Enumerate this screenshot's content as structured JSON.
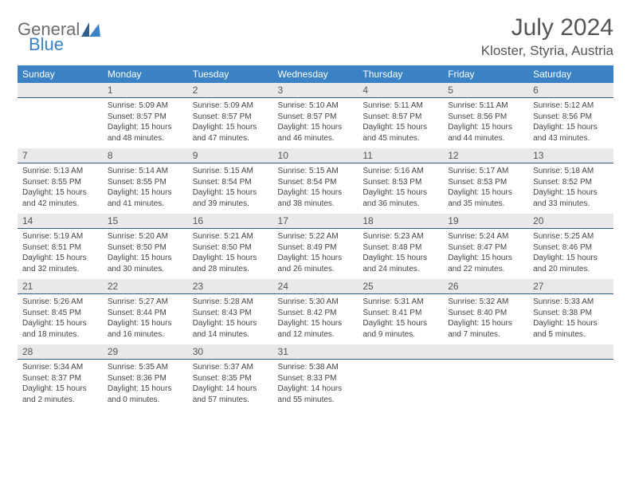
{
  "logo": {
    "general": "General",
    "blue": "Blue"
  },
  "title": "July 2024",
  "location": "Kloster, Styria, Austria",
  "colors": {
    "header_bg": "#3a82c4",
    "header_text": "#ffffff",
    "daynum_bg": "#e9e9e9",
    "daynum_border": "#2d5f8f",
    "body_text": "#444444",
    "page_bg": "#ffffff",
    "logo_general": "#6d6d6d",
    "logo_blue": "#3a82c4",
    "title_color": "#555555"
  },
  "fonts": {
    "title_size_pt": 22,
    "location_size_pt": 13,
    "dayhdr_size_pt": 9,
    "body_size_pt": 7.5
  },
  "day_headers": [
    "Sunday",
    "Monday",
    "Tuesday",
    "Wednesday",
    "Thursday",
    "Friday",
    "Saturday"
  ],
  "weeks": [
    [
      {
        "n": "",
        "sr": "",
        "ss": "",
        "dl": ""
      },
      {
        "n": "1",
        "sr": "Sunrise: 5:09 AM",
        "ss": "Sunset: 8:57 PM",
        "dl": "Daylight: 15 hours and 48 minutes."
      },
      {
        "n": "2",
        "sr": "Sunrise: 5:09 AM",
        "ss": "Sunset: 8:57 PM",
        "dl": "Daylight: 15 hours and 47 minutes."
      },
      {
        "n": "3",
        "sr": "Sunrise: 5:10 AM",
        "ss": "Sunset: 8:57 PM",
        "dl": "Daylight: 15 hours and 46 minutes."
      },
      {
        "n": "4",
        "sr": "Sunrise: 5:11 AM",
        "ss": "Sunset: 8:57 PM",
        "dl": "Daylight: 15 hours and 45 minutes."
      },
      {
        "n": "5",
        "sr": "Sunrise: 5:11 AM",
        "ss": "Sunset: 8:56 PM",
        "dl": "Daylight: 15 hours and 44 minutes."
      },
      {
        "n": "6",
        "sr": "Sunrise: 5:12 AM",
        "ss": "Sunset: 8:56 PM",
        "dl": "Daylight: 15 hours and 43 minutes."
      }
    ],
    [
      {
        "n": "7",
        "sr": "Sunrise: 5:13 AM",
        "ss": "Sunset: 8:55 PM",
        "dl": "Daylight: 15 hours and 42 minutes."
      },
      {
        "n": "8",
        "sr": "Sunrise: 5:14 AM",
        "ss": "Sunset: 8:55 PM",
        "dl": "Daylight: 15 hours and 41 minutes."
      },
      {
        "n": "9",
        "sr": "Sunrise: 5:15 AM",
        "ss": "Sunset: 8:54 PM",
        "dl": "Daylight: 15 hours and 39 minutes."
      },
      {
        "n": "10",
        "sr": "Sunrise: 5:15 AM",
        "ss": "Sunset: 8:54 PM",
        "dl": "Daylight: 15 hours and 38 minutes."
      },
      {
        "n": "11",
        "sr": "Sunrise: 5:16 AM",
        "ss": "Sunset: 8:53 PM",
        "dl": "Daylight: 15 hours and 36 minutes."
      },
      {
        "n": "12",
        "sr": "Sunrise: 5:17 AM",
        "ss": "Sunset: 8:53 PM",
        "dl": "Daylight: 15 hours and 35 minutes."
      },
      {
        "n": "13",
        "sr": "Sunrise: 5:18 AM",
        "ss": "Sunset: 8:52 PM",
        "dl": "Daylight: 15 hours and 33 minutes."
      }
    ],
    [
      {
        "n": "14",
        "sr": "Sunrise: 5:19 AM",
        "ss": "Sunset: 8:51 PM",
        "dl": "Daylight: 15 hours and 32 minutes."
      },
      {
        "n": "15",
        "sr": "Sunrise: 5:20 AM",
        "ss": "Sunset: 8:50 PM",
        "dl": "Daylight: 15 hours and 30 minutes."
      },
      {
        "n": "16",
        "sr": "Sunrise: 5:21 AM",
        "ss": "Sunset: 8:50 PM",
        "dl": "Daylight: 15 hours and 28 minutes."
      },
      {
        "n": "17",
        "sr": "Sunrise: 5:22 AM",
        "ss": "Sunset: 8:49 PM",
        "dl": "Daylight: 15 hours and 26 minutes."
      },
      {
        "n": "18",
        "sr": "Sunrise: 5:23 AM",
        "ss": "Sunset: 8:48 PM",
        "dl": "Daylight: 15 hours and 24 minutes."
      },
      {
        "n": "19",
        "sr": "Sunrise: 5:24 AM",
        "ss": "Sunset: 8:47 PM",
        "dl": "Daylight: 15 hours and 22 minutes."
      },
      {
        "n": "20",
        "sr": "Sunrise: 5:25 AM",
        "ss": "Sunset: 8:46 PM",
        "dl": "Daylight: 15 hours and 20 minutes."
      }
    ],
    [
      {
        "n": "21",
        "sr": "Sunrise: 5:26 AM",
        "ss": "Sunset: 8:45 PM",
        "dl": "Daylight: 15 hours and 18 minutes."
      },
      {
        "n": "22",
        "sr": "Sunrise: 5:27 AM",
        "ss": "Sunset: 8:44 PM",
        "dl": "Daylight: 15 hours and 16 minutes."
      },
      {
        "n": "23",
        "sr": "Sunrise: 5:28 AM",
        "ss": "Sunset: 8:43 PM",
        "dl": "Daylight: 15 hours and 14 minutes."
      },
      {
        "n": "24",
        "sr": "Sunrise: 5:30 AM",
        "ss": "Sunset: 8:42 PM",
        "dl": "Daylight: 15 hours and 12 minutes."
      },
      {
        "n": "25",
        "sr": "Sunrise: 5:31 AM",
        "ss": "Sunset: 8:41 PM",
        "dl": "Daylight: 15 hours and 9 minutes."
      },
      {
        "n": "26",
        "sr": "Sunrise: 5:32 AM",
        "ss": "Sunset: 8:40 PM",
        "dl": "Daylight: 15 hours and 7 minutes."
      },
      {
        "n": "27",
        "sr": "Sunrise: 5:33 AM",
        "ss": "Sunset: 8:38 PM",
        "dl": "Daylight: 15 hours and 5 minutes."
      }
    ],
    [
      {
        "n": "28",
        "sr": "Sunrise: 5:34 AM",
        "ss": "Sunset: 8:37 PM",
        "dl": "Daylight: 15 hours and 2 minutes."
      },
      {
        "n": "29",
        "sr": "Sunrise: 5:35 AM",
        "ss": "Sunset: 8:36 PM",
        "dl": "Daylight: 15 hours and 0 minutes."
      },
      {
        "n": "30",
        "sr": "Sunrise: 5:37 AM",
        "ss": "Sunset: 8:35 PM",
        "dl": "Daylight: 14 hours and 57 minutes."
      },
      {
        "n": "31",
        "sr": "Sunrise: 5:38 AM",
        "ss": "Sunset: 8:33 PM",
        "dl": "Daylight: 14 hours and 55 minutes."
      },
      {
        "n": "",
        "sr": "",
        "ss": "",
        "dl": ""
      },
      {
        "n": "",
        "sr": "",
        "ss": "",
        "dl": ""
      },
      {
        "n": "",
        "sr": "",
        "ss": "",
        "dl": ""
      }
    ]
  ]
}
